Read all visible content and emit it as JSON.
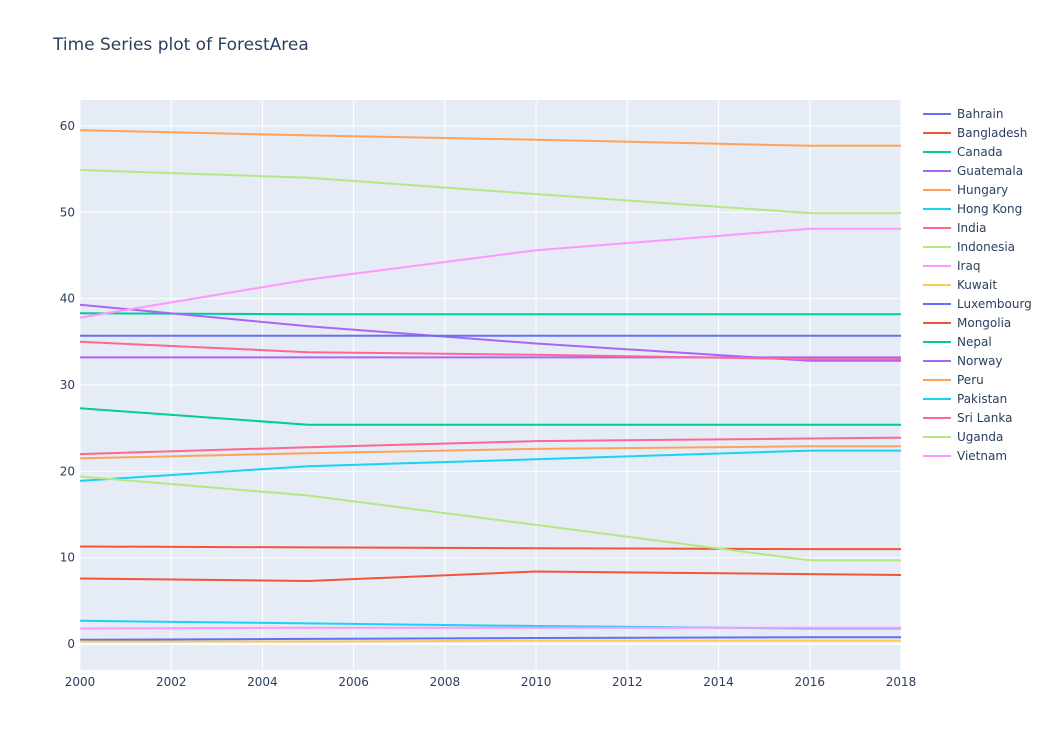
{
  "chart_data": {
    "type": "line",
    "title": "Time Series plot of ForestArea",
    "xlabel": "",
    "ylabel": "",
    "x": [
      2000,
      2005,
      2010,
      2016,
      2018
    ],
    "xlim": [
      2000,
      2018
    ],
    "ylim": [
      -3,
      63
    ],
    "xticks": [
      2000,
      2002,
      2004,
      2006,
      2008,
      2010,
      2012,
      2014,
      2016,
      2018
    ],
    "yticks": [
      0,
      10,
      20,
      30,
      40,
      50,
      60
    ],
    "grid": true,
    "legend_position": "right",
    "plot_background": "#e5ecf6",
    "series": [
      {
        "name": "Bahrain",
        "color": "#636efa",
        "values": [
          0.5,
          0.6,
          0.7,
          0.8,
          0.8
        ]
      },
      {
        "name": "Bangladesh",
        "color": "#ef553b",
        "values": [
          11.3,
          11.2,
          11.1,
          11.0,
          11.0
        ]
      },
      {
        "name": "Canada",
        "color": "#00cc96",
        "values": [
          38.3,
          38.2,
          38.2,
          38.2,
          38.2
        ]
      },
      {
        "name": "Guatemala",
        "color": "#ab63fa",
        "values": [
          39.3,
          36.8,
          34.8,
          32.8,
          32.8
        ]
      },
      {
        "name": "Hungary",
        "color": "#ffa15a",
        "values": [
          21.5,
          22.1,
          22.6,
          22.9,
          22.9
        ]
      },
      {
        "name": "Hong Kong",
        "color": "#19d3f3",
        "values": [
          2.7,
          2.4,
          2.1,
          1.8,
          1.8
        ]
      },
      {
        "name": "India",
        "color": "#ff6692",
        "values": [
          22.0,
          22.8,
          23.5,
          23.8,
          23.9
        ]
      },
      {
        "name": "Indonesia",
        "color": "#b6e880",
        "values": [
          54.9,
          54.0,
          52.1,
          49.9,
          49.9
        ]
      },
      {
        "name": "Iraq",
        "color": "#ff97ff",
        "values": [
          1.8,
          1.9,
          1.9,
          1.9,
          1.9
        ]
      },
      {
        "name": "Kuwait",
        "color": "#fecb52",
        "values": [
          0.3,
          0.3,
          0.4,
          0.4,
          0.4
        ]
      },
      {
        "name": "Luxembourg",
        "color": "#636efa",
        "values": [
          35.7,
          35.7,
          35.7,
          35.7,
          35.7
        ]
      },
      {
        "name": "Mongolia",
        "color": "#ef553b",
        "values": [
          7.6,
          7.3,
          8.4,
          8.1,
          8.0
        ]
      },
      {
        "name": "Nepal",
        "color": "#00cc96",
        "values": [
          27.3,
          25.4,
          25.4,
          25.4,
          25.4
        ]
      },
      {
        "name": "Norway",
        "color": "#ab63fa",
        "values": [
          33.2,
          33.2,
          33.2,
          33.2,
          33.2
        ]
      },
      {
        "name": "Peru",
        "color": "#ffa15a",
        "values": [
          59.5,
          58.9,
          58.4,
          57.7,
          57.7
        ]
      },
      {
        "name": "Pakistan",
        "color": "#19d3f3",
        "values": [
          18.9,
          20.6,
          21.4,
          22.4,
          22.4
        ]
      },
      {
        "name": "Sri Lanka",
        "color": "#ff6692",
        "values": [
          35.0,
          33.8,
          33.5,
          33.0,
          33.0
        ]
      },
      {
        "name": "Uganda",
        "color": "#b6e880",
        "values": [
          19.4,
          17.2,
          13.8,
          9.7,
          9.7
        ]
      },
      {
        "name": "Vietnam",
        "color": "#ff97ff",
        "values": [
          37.8,
          42.2,
          45.6,
          48.1,
          48.1
        ]
      }
    ]
  }
}
